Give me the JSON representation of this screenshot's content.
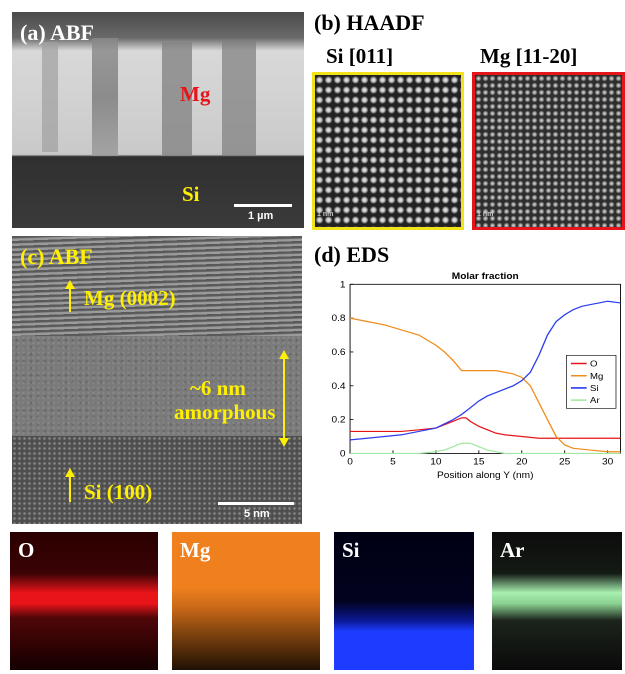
{
  "panel_a": {
    "label": "(a) ABF",
    "mg_label": "Mg",
    "si_label": "Si",
    "scale": "1 µm"
  },
  "panel_b": {
    "label": "(b) HAADF",
    "si_title": "Si [011]",
    "mg_title": "Mg [11-20]",
    "si_scale": "1 nm",
    "mg_scale": "1 nm"
  },
  "panel_c": {
    "label": "(c) ABF",
    "mg_label": "Mg (0002)",
    "amorphous_line1": "~6 nm",
    "amorphous_line2": "amorphous",
    "si_label": "Si (100)",
    "scale": "5 nm"
  },
  "panel_d": {
    "label": "(d) EDS"
  },
  "maps": [
    {
      "label": "O",
      "color": "#e8141a"
    },
    {
      "label": "Mg",
      "color": "#f0801e"
    },
    {
      "label": "Si",
      "color": "#1e3cff"
    },
    {
      "label": "Ar",
      "color": "#a8f0b0"
    }
  ],
  "chart_data": {
    "type": "line",
    "title": "Molar fraction",
    "xlabel": "Position along Y (nm)",
    "ylabel": "",
    "xlim": [
      0,
      31.5
    ],
    "ylim": [
      0,
      1
    ],
    "xticks": [
      "0",
      "5",
      "10",
      "15",
      "20",
      "25",
      "30"
    ],
    "yticks": [
      "0",
      "0.2",
      "0.4",
      "0.6",
      "0.8",
      "1"
    ],
    "legend_position": "right",
    "series": [
      {
        "name": "O",
        "color": "#e8141a",
        "x": [
          0,
          2,
          4,
          6,
          8,
          10,
          11,
          12,
          13,
          13.5,
          14,
          15,
          16,
          17,
          18,
          20,
          22,
          24,
          26,
          28,
          30,
          31.5
        ],
        "y": [
          0.13,
          0.13,
          0.13,
          0.13,
          0.14,
          0.15,
          0.17,
          0.19,
          0.21,
          0.21,
          0.19,
          0.16,
          0.14,
          0.12,
          0.11,
          0.1,
          0.09,
          0.09,
          0.09,
          0.09,
          0.09,
          0.09
        ]
      },
      {
        "name": "Mg",
        "color": "#f08c1e",
        "x": [
          0,
          2,
          4,
          6,
          8,
          10,
          11,
          12,
          13,
          14,
          15,
          16,
          17,
          18,
          19,
          20,
          21,
          22,
          23,
          24,
          25,
          26,
          28,
          30,
          31.5
        ],
        "y": [
          0.8,
          0.78,
          0.76,
          0.73,
          0.7,
          0.64,
          0.6,
          0.55,
          0.49,
          0.49,
          0.49,
          0.49,
          0.49,
          0.48,
          0.47,
          0.45,
          0.4,
          0.3,
          0.2,
          0.1,
          0.05,
          0.03,
          0.02,
          0.01,
          0.01
        ]
      },
      {
        "name": "Si",
        "color": "#2a3cf0",
        "x": [
          0,
          2,
          4,
          6,
          8,
          10,
          12,
          13,
          14,
          15,
          16,
          17,
          18,
          19,
          20,
          21,
          22,
          23,
          24,
          25,
          26,
          27,
          28,
          29,
          30,
          31.5
        ],
        "y": [
          0.08,
          0.09,
          0.1,
          0.11,
          0.13,
          0.15,
          0.2,
          0.23,
          0.27,
          0.31,
          0.34,
          0.36,
          0.38,
          0.4,
          0.43,
          0.48,
          0.58,
          0.7,
          0.78,
          0.82,
          0.85,
          0.87,
          0.88,
          0.89,
          0.9,
          0.89
        ]
      },
      {
        "name": "Ar",
        "color": "#a0e8a0",
        "x": [
          0,
          4,
          8,
          10,
          11,
          12,
          13,
          14,
          15,
          16,
          17,
          18,
          20,
          24,
          28,
          31.5
        ],
        "y": [
          0.0,
          0.0,
          0.0,
          0.01,
          0.02,
          0.04,
          0.06,
          0.06,
          0.04,
          0.02,
          0.01,
          0.0,
          0.0,
          0.0,
          0.0,
          0.0
        ]
      }
    ]
  }
}
